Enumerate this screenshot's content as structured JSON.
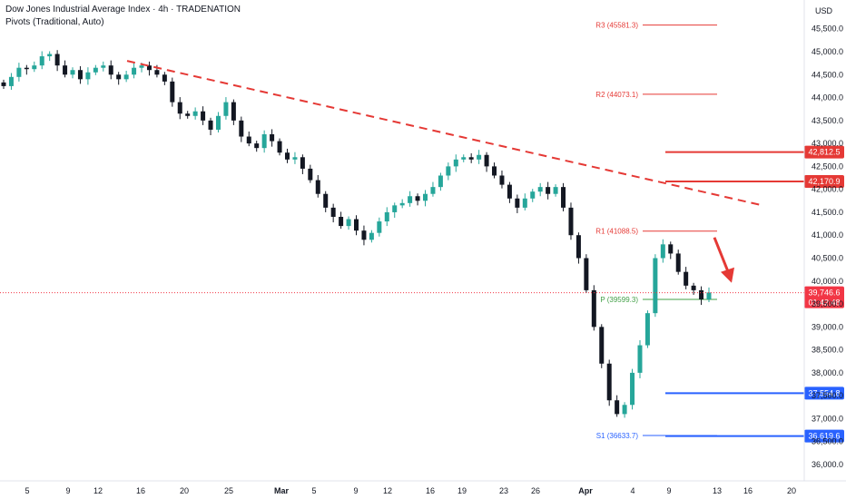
{
  "header": {
    "title": "Dow Jones Industrial Average Index · 4h · TRADENATION",
    "indicator": "Pivots (Traditional, Auto)"
  },
  "currency_label": "USD",
  "colors": {
    "up": "#26a69a",
    "down": "#131722",
    "resistance": "#e53935",
    "support": "#2962ff",
    "pivot": "#43a047",
    "price_tag": "#f23645"
  },
  "chart_data": {
    "type": "candlestick",
    "ylim": [
      35800,
      45900
    ],
    "yticks": [
      36000,
      36500,
      37000,
      37500,
      38000,
      38500,
      39000,
      39500,
      40000,
      40500,
      41000,
      41500,
      42000,
      42500,
      43000,
      43500,
      44000,
      44500,
      45000,
      45500
    ],
    "ytick_labels": [
      "36,000.0",
      "36,500.0",
      "37,000.0",
      "37,500.0",
      "38,000.0",
      "38,500.0",
      "39,000.0",
      "39,500.0",
      "40,000.0",
      "40,500.0",
      "41,000.0",
      "41,500.0",
      "42,000.0",
      "42,500.0",
      "43,000.0",
      "43,500.0",
      "44,000.0",
      "44,500.0",
      "45,000.0",
      "45,500.0"
    ],
    "xaxis_labels": [
      "5",
      "9",
      "12",
      "16",
      "20",
      "25",
      "Mar",
      "5",
      "9",
      "12",
      "16",
      "19",
      "23",
      "26",
      "Apr",
      "4",
      "9",
      "13",
      "16",
      "20"
    ],
    "closes": [
      44250,
      44450,
      44650,
      44620,
      44700,
      44900,
      44950,
      44700,
      44500,
      44600,
      44400,
      44550,
      44650,
      44700,
      44500,
      44400,
      44500,
      44650,
      44700,
      44600,
      44500,
      44350,
      43900,
      43650,
      43600,
      43700,
      43500,
      43300,
      43600,
      43900,
      43500,
      43150,
      43000,
      42900,
      43200,
      43050,
      42800,
      42650,
      42700,
      42450,
      42200,
      41900,
      41600,
      41400,
      41200,
      41350,
      41100,
      40900,
      41050,
      41300,
      41500,
      41650,
      41700,
      41850,
      41750,
      41900,
      42050,
      42300,
      42500,
      42650,
      42700,
      42650,
      42750,
      42500,
      42300,
      42100,
      41800,
      41600,
      41800,
      41950,
      42050,
      41900,
      42050,
      41600,
      41000,
      40500,
      39800,
      39000,
      38200,
      37400,
      37100,
      37300,
      38000,
      38600,
      39300,
      40500,
      40800,
      40600,
      40200,
      39900,
      39800,
      39600,
      39750
    ],
    "pivots": {
      "R3": {
        "label": "R3 (45581.3)",
        "value": 45581.3
      },
      "R2": {
        "label": "R2 (44073.1)",
        "value": 44073.1
      },
      "R1": {
        "label": "R1 (41088.5)",
        "value": 41088.5
      },
      "P": {
        "label": "P (39599.3)",
        "value": 39599.3
      },
      "S1": {
        "label": "S1 (36633.7)",
        "value": 36633.7
      }
    },
    "levels": {
      "resistance": [
        {
          "value": 42812.5,
          "label": "42,812.5"
        },
        {
          "value": 42170.9,
          "label": "42,170.9"
        }
      ],
      "support": [
        {
          "value": 37554.8,
          "label": "37,554.8"
        },
        {
          "value": 36619.6,
          "label": "36,619.6"
        }
      ]
    },
    "trendline": {
      "start_value": 44800,
      "end_value": 41650
    },
    "last_price": {
      "value": 39746.6,
      "label": "39,746.6",
      "countdown": "01:42:48"
    },
    "arrow": {
      "from_value": 40950,
      "to_value": 40000
    }
  }
}
